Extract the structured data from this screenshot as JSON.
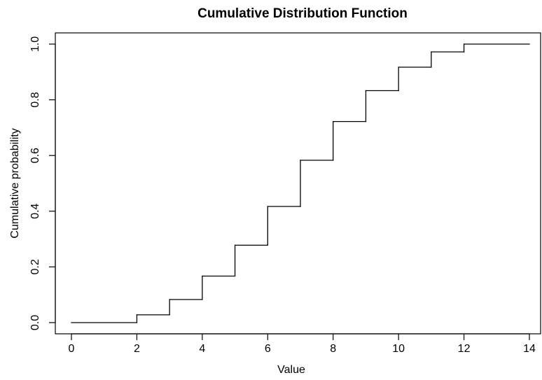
{
  "chart_data": {
    "type": "line",
    "step": "post",
    "title": "Cumulative Distribution Function",
    "xlabel": "Value",
    "ylabel": "Cumulative probability",
    "xlim": [
      0,
      14
    ],
    "ylim": [
      0,
      1
    ],
    "xticks": [
      "0",
      "2",
      "4",
      "6",
      "8",
      "10",
      "12",
      "14"
    ],
    "yticks": [
      "0.0",
      "0.2",
      "0.4",
      "0.6",
      "0.8",
      "1.0"
    ],
    "grid": false,
    "line_color": "#000000",
    "x": [
      0,
      2,
      3,
      4,
      5,
      6,
      7,
      8,
      9,
      10,
      11,
      12,
      14
    ],
    "y": [
      0.0,
      0.028,
      0.083,
      0.167,
      0.278,
      0.417,
      0.583,
      0.722,
      0.833,
      0.917,
      0.972,
      1.0,
      1.0
    ]
  }
}
